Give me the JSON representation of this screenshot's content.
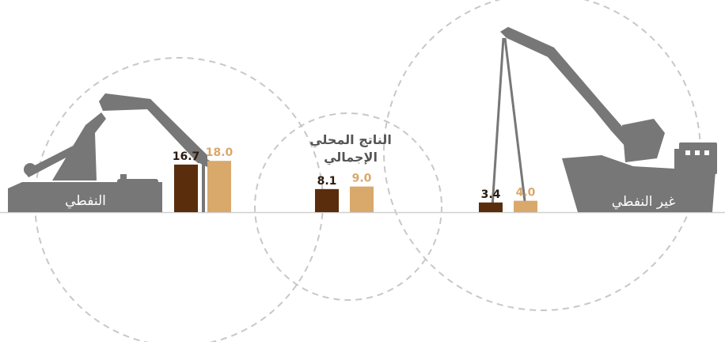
{
  "chart_data": {
    "type": "bar",
    "categories": [
      "النفطي",
      "الناتج المحلي الإجمالي",
      "غير النفطي"
    ],
    "series": [
      {
        "values": [
          16.7,
          8.1,
          3.4
        ],
        "color": "#5a2d0c"
      },
      {
        "values": [
          18.0,
          9.0,
          4.0
        ],
        "color": "#d9a86b"
      }
    ],
    "value_labels": [
      [
        "16.7",
        "8.1",
        "3.4"
      ],
      [
        "18.0",
        "9.0",
        "4.0"
      ]
    ],
    "center_title_lines": [
      "الناتج المحلي",
      "الإجمالي"
    ],
    "icon_names": [
      "oil-pump-jack-icon",
      "ship-crane-icon"
    ],
    "grid": false,
    "colors": {
      "silhouette": "#777777",
      "circle": "#c8c8c8",
      "baseline": "#d0d0d0"
    }
  }
}
